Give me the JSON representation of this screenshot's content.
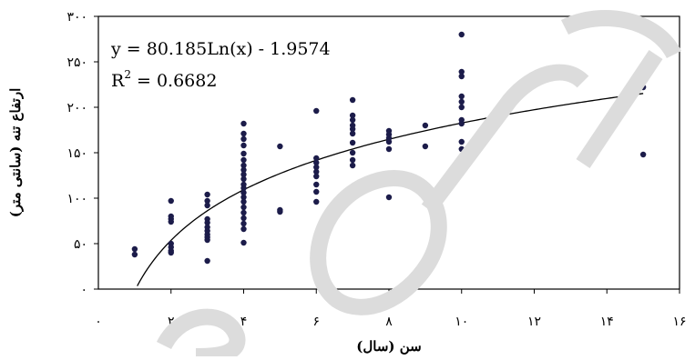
{
  "chart_data": {
    "type": "scatter",
    "xlabel": "سن (سال)",
    "ylabel": "ارتفاع تنه (سانتی متر)",
    "xlim": [
      0,
      16
    ],
    "ylim": [
      0,
      300
    ],
    "x_ticks": [
      "۰",
      "۲",
      "۴",
      "۶",
      "۸",
      "۱۰",
      "۱۲",
      "۱۴",
      "۱۶"
    ],
    "y_ticks": [
      "۰",
      "۵۰",
      "۱۰۰",
      "۱۵۰",
      "۲۰۰",
      "۲۵۰",
      "۳۰۰"
    ],
    "grid": false,
    "points": [
      [
        1,
        44
      ],
      [
        1,
        38
      ],
      [
        2,
        97
      ],
      [
        2,
        80
      ],
      [
        2,
        77
      ],
      [
        2,
        74
      ],
      [
        2,
        50
      ],
      [
        2,
        46
      ],
      [
        2,
        42
      ],
      [
        2,
        40
      ],
      [
        3,
        104
      ],
      [
        3,
        97
      ],
      [
        3,
        92
      ],
      [
        3,
        77
      ],
      [
        3,
        73
      ],
      [
        3,
        68
      ],
      [
        3,
        64
      ],
      [
        3,
        60
      ],
      [
        3,
        57
      ],
      [
        3,
        54
      ],
      [
        3,
        31
      ],
      [
        4,
        182
      ],
      [
        4,
        171
      ],
      [
        4,
        165
      ],
      [
        4,
        158
      ],
      [
        4,
        149
      ],
      [
        4,
        142
      ],
      [
        4,
        136
      ],
      [
        4,
        131
      ],
      [
        4,
        126
      ],
      [
        4,
        121
      ],
      [
        4,
        115
      ],
      [
        4,
        111
      ],
      [
        4,
        106
      ],
      [
        4,
        101
      ],
      [
        4,
        96
      ],
      [
        4,
        90
      ],
      [
        4,
        84
      ],
      [
        4,
        78
      ],
      [
        4,
        72
      ],
      [
        4,
        66
      ],
      [
        4,
        51
      ],
      [
        5,
        157
      ],
      [
        5,
        87
      ],
      [
        5,
        85
      ],
      [
        6,
        196
      ],
      [
        6,
        144
      ],
      [
        6,
        139
      ],
      [
        6,
        134
      ],
      [
        6,
        129
      ],
      [
        6,
        124
      ],
      [
        6,
        115
      ],
      [
        6,
        107
      ],
      [
        6,
        96
      ],
      [
        7,
        208
      ],
      [
        7,
        191
      ],
      [
        7,
        186
      ],
      [
        7,
        180
      ],
      [
        7,
        176
      ],
      [
        7,
        171
      ],
      [
        7,
        161
      ],
      [
        7,
        150
      ],
      [
        7,
        142
      ],
      [
        7,
        136
      ],
      [
        8,
        174
      ],
      [
        8,
        170
      ],
      [
        8,
        166
      ],
      [
        8,
        162
      ],
      [
        8,
        154
      ],
      [
        8,
        101
      ],
      [
        9,
        180
      ],
      [
        9,
        157
      ],
      [
        10,
        280
      ],
      [
        10,
        239
      ],
      [
        10,
        234
      ],
      [
        10,
        212
      ],
      [
        10,
        206
      ],
      [
        10,
        200
      ],
      [
        10,
        186
      ],
      [
        10,
        182
      ],
      [
        10,
        162
      ],
      [
        10,
        154
      ],
      [
        10,
        136
      ],
      [
        10,
        134
      ],
      [
        15,
        222
      ],
      [
        15,
        148
      ]
    ],
    "trendline": {
      "type": "logarithmic",
      "a": 80.185,
      "b": -1.9574,
      "x_range": [
        1,
        15
      ]
    },
    "annotations": {
      "equation": "y = 80.185Ln(x) - 1.9574",
      "r2_prefix": "R",
      "r2_exp": "2",
      "r2_value": " = 0.6682"
    },
    "colors": {
      "points": "#1c1c4a",
      "line": "#000000",
      "watermark": "#d8d8d8"
    }
  }
}
